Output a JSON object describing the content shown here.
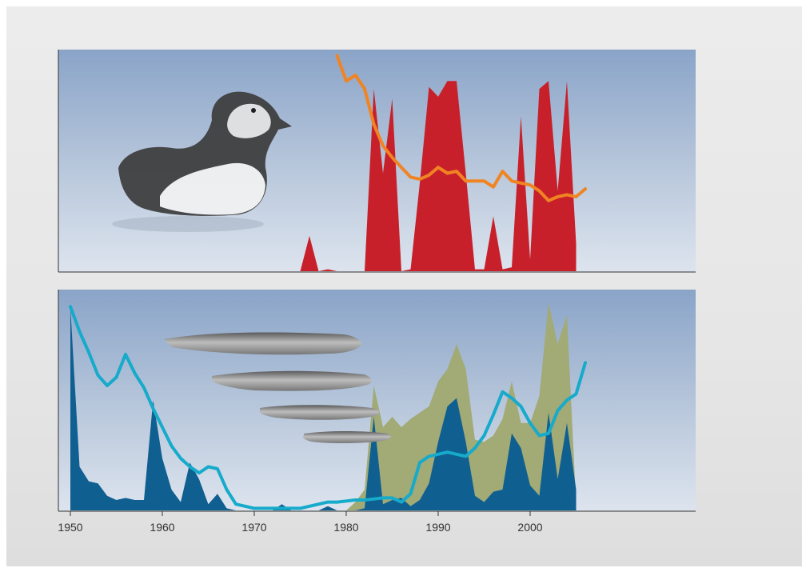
{
  "chart_data": [
    {
      "type": "area",
      "panel": "top",
      "illustration": "puffin-bird-photo",
      "xlim": [
        1950,
        2007
      ],
      "ylim": [
        0,
        1
      ],
      "grid": false,
      "series": [
        {
          "kind": "area",
          "color": "#c8202a",
          "x": [
            1975,
            1976,
            1977,
            1978,
            1979,
            1980,
            1981,
            1982,
            1983,
            1984,
            1985,
            1986,
            1987,
            1988,
            1989,
            1990,
            1991,
            1992,
            1993,
            1994,
            1995,
            1996,
            1997,
            1998,
            1999,
            2000,
            2001,
            2002,
            2003,
            2004,
            2005
          ],
          "values": [
            0,
            0.18,
            0,
            0.01,
            0,
            0,
            0,
            0,
            0.93,
            0.5,
            0.88,
            0,
            0.01,
            0.45,
            0.94,
            0.89,
            0.97,
            0.97,
            0.5,
            0.01,
            0.01,
            0.28,
            0.01,
            0.02,
            0.79,
            0.06,
            0.93,
            0.97,
            0.41,
            0.97,
            0.14
          ]
        },
        {
          "kind": "line",
          "color": "#f08423",
          "x": [
            1979,
            1980,
            1981,
            1982,
            1983,
            1984,
            1985,
            1986,
            1987,
            1988,
            1989,
            1990,
            1991,
            1992,
            1993,
            1994,
            1995,
            1996,
            1997,
            1998,
            1999,
            2000,
            2001,
            2002,
            2003,
            2004,
            2005,
            2006
          ],
          "values": [
            1.1,
            0.97,
            1.0,
            0.93,
            0.75,
            0.64,
            0.58,
            0.53,
            0.48,
            0.47,
            0.49,
            0.53,
            0.5,
            0.51,
            0.46,
            0.46,
            0.46,
            0.43,
            0.51,
            0.46,
            0.45,
            0.44,
            0.41,
            0.36,
            0.38,
            0.39,
            0.38,
            0.42
          ]
        }
      ]
    },
    {
      "type": "area",
      "panel": "bottom",
      "illustration": "sandeel-fish-photo",
      "xlim": [
        1950,
        2007
      ],
      "ylim": [
        0,
        1
      ],
      "grid": false,
      "x_ticks": [
        "1950",
        "1960",
        "1970",
        "1980",
        "1990",
        "2000"
      ],
      "series": [
        {
          "kind": "area",
          "color": "#a2aa76",
          "x": [
            1980,
            1981,
            1982,
            1983,
            1984,
            1985,
            1986,
            1987,
            1988,
            1989,
            1990,
            1991,
            1992,
            1993,
            1994,
            1995,
            1996,
            1997,
            1998,
            1999,
            2000,
            2001,
            2002,
            2003,
            2004,
            2005
          ],
          "values": [
            0,
            0.04,
            0.1,
            0.6,
            0.4,
            0.45,
            0.4,
            0.44,
            0.47,
            0.5,
            0.62,
            0.68,
            0.8,
            0.68,
            0.34,
            0.33,
            0.36,
            0.44,
            0.62,
            0.42,
            0.42,
            0.55,
            1.0,
            0.8,
            0.94,
            0.03
          ]
        },
        {
          "kind": "area",
          "color": "#0f5f90",
          "x": [
            1950,
            1951,
            1952,
            1953,
            1954,
            1955,
            1956,
            1957,
            1958,
            1959,
            1960,
            1961,
            1962,
            1963,
            1964,
            1965,
            1966,
            1967,
            1968,
            1969,
            1970,
            1971,
            1972,
            1973,
            1974,
            1975,
            1976,
            1977,
            1978,
            1979,
            1980,
            1981,
            1982,
            1983,
            1984,
            1985,
            1986,
            1987,
            1988,
            1989,
            1990,
            1991,
            1992,
            1993,
            1994,
            1995,
            1996,
            1997,
            1998,
            1999,
            2000,
            2001,
            2002,
            2003,
            2004,
            2005
          ],
          "values": [
            0.98,
            0.21,
            0.14,
            0.13,
            0.07,
            0.05,
            0.06,
            0.05,
            0.05,
            0.53,
            0.25,
            0.1,
            0.04,
            0.23,
            0.15,
            0.03,
            0.08,
            0.01,
            0,
            0,
            0,
            0,
            0,
            0.03,
            0,
            0,
            0,
            0,
            0.02,
            0,
            0,
            0,
            0.01,
            0.45,
            0.03,
            0.05,
            0.06,
            0.02,
            0.05,
            0.13,
            0.33,
            0.5,
            0.54,
            0.33,
            0.07,
            0.04,
            0.09,
            0.1,
            0.37,
            0.3,
            0.12,
            0.07,
            0.47,
            0.15,
            0.42,
            0.1
          ]
        },
        {
          "kind": "line",
          "color": "#16aacb",
          "x": [
            1950,
            1951,
            1952,
            1953,
            1954,
            1955,
            1956,
            1957,
            1958,
            1959,
            1960,
            1961,
            1962,
            1963,
            1964,
            1965,
            1966,
            1967,
            1968,
            1969,
            1970,
            1971,
            1972,
            1973,
            1974,
            1975,
            1976,
            1977,
            1978,
            1979,
            1980,
            1981,
            1982,
            1983,
            1984,
            1985,
            1986,
            1987,
            1988,
            1989,
            1990,
            1991,
            1992,
            1993,
            1994,
            1995,
            1996,
            1997,
            1998,
            1999,
            2000,
            2001,
            2002,
            2003,
            2004,
            2005,
            2006
          ],
          "values": [
            0.98,
            0.86,
            0.76,
            0.65,
            0.6,
            0.64,
            0.75,
            0.66,
            0.59,
            0.49,
            0.4,
            0.31,
            0.25,
            0.21,
            0.18,
            0.21,
            0.2,
            0.1,
            0.03,
            0.02,
            0.01,
            0.01,
            0.01,
            0.01,
            0.01,
            0.01,
            0.02,
            0.03,
            0.04,
            0.04,
            0.045,
            0.05,
            0.05,
            0.055,
            0.06,
            0.06,
            0.04,
            0.08,
            0.23,
            0.26,
            0.27,
            0.28,
            0.27,
            0.26,
            0.3,
            0.36,
            0.46,
            0.57,
            0.54,
            0.5,
            0.42,
            0.36,
            0.37,
            0.48,
            0.53,
            0.56,
            0.71
          ]
        }
      ]
    }
  ]
}
